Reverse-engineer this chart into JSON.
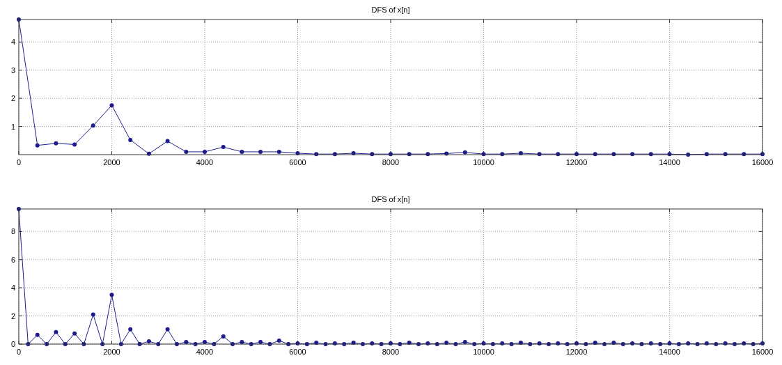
{
  "chart_data": [
    {
      "type": "line",
      "title": "DFS of x[n]",
      "x": [
        0,
        400,
        800,
        1200,
        1600,
        2000,
        2400,
        2800,
        3200,
        3600,
        4000,
        4400,
        4800,
        5200,
        5600,
        6000,
        6400,
        6800,
        7200,
        7600,
        8000,
        8400,
        8800,
        9200,
        9600,
        10000,
        10400,
        10800,
        11200,
        11600,
        12000,
        12400,
        12800,
        13200,
        13600,
        14000,
        14400,
        14800,
        15200,
        15600,
        16000
      ],
      "series": [
        {
          "color": "#1c1c8c",
          "values": [
            4.8,
            0.33,
            0.4,
            0.36,
            1.03,
            1.75,
            0.52,
            0.03,
            0.48,
            0.1,
            0.1,
            0.27,
            0.1,
            0.1,
            0.1,
            0.05,
            0.02,
            0.02,
            0.05,
            0.02,
            0.02,
            0.02,
            0.02,
            0.04,
            0.08,
            0.02,
            0.02,
            0.05,
            0.02,
            0.02,
            0.02,
            0.02,
            0.02,
            0.02,
            0.02,
            0.02,
            0.0,
            0.02,
            0.02,
            0.02,
            0.02
          ]
        }
      ],
      "xlim": [
        0,
        16000
      ],
      "xticks": [
        0,
        2000,
        4000,
        6000,
        8000,
        10000,
        12000,
        14000,
        16000
      ],
      "ylim": [
        0,
        4.8
      ],
      "yticks": [
        1,
        2,
        3,
        4
      ],
      "grid": true,
      "marker": "circle",
      "line_style": "solid"
    },
    {
      "type": "line",
      "title": "DFS of x[n]",
      "x": [
        0,
        200,
        400,
        600,
        800,
        1000,
        1200,
        1400,
        1600,
        1800,
        2000,
        2200,
        2400,
        2600,
        2800,
        3000,
        3200,
        3400,
        3600,
        3800,
        4000,
        4200,
        4400,
        4600,
        4800,
        5000,
        5200,
        5400,
        5600,
        5800,
        6000,
        6200,
        6400,
        6600,
        6800,
        7000,
        7200,
        7400,
        7600,
        7800,
        8000,
        8200,
        8400,
        8600,
        8800,
        9000,
        9200,
        9400,
        9600,
        9800,
        10000,
        10200,
        10400,
        10600,
        10800,
        11000,
        11200,
        11400,
        11600,
        11800,
        12000,
        12200,
        12400,
        12600,
        12800,
        13000,
        13200,
        13400,
        13600,
        13800,
        14000,
        14200,
        14400,
        14600,
        14800,
        15000,
        15200,
        15400,
        15600,
        15800,
        16000
      ],
      "series": [
        {
          "color": "#1c1c8c",
          "values": [
            9.6,
            0,
            0.65,
            0,
            0.85,
            0,
            0.75,
            0,
            2.1,
            0,
            3.5,
            0,
            1.05,
            0,
            0.2,
            0,
            1.05,
            0,
            0.15,
            0,
            0.15,
            0,
            0.55,
            0,
            0.15,
            0,
            0.15,
            0,
            0.25,
            0,
            0.05,
            0,
            0.1,
            0,
            0.05,
            0,
            0.1,
            0,
            0.05,
            0,
            0.05,
            0,
            0.1,
            0,
            0.05,
            0,
            0.1,
            0,
            0.15,
            0,
            0.05,
            0,
            0.05,
            0,
            0.1,
            0,
            0.05,
            0,
            0.05,
            0,
            0.05,
            0,
            0.1,
            0,
            0.1,
            0,
            0.05,
            0,
            0.05,
            0,
            0.05,
            0,
            0.05,
            0,
            0.05,
            0,
            0.05,
            0,
            0.05,
            0,
            0.05
          ]
        }
      ],
      "xlim": [
        0,
        16000
      ],
      "xticks": [
        0,
        2000,
        4000,
        6000,
        8000,
        10000,
        12000,
        14000,
        16000
      ],
      "ylim": [
        0,
        9.6
      ],
      "yticks": [
        0,
        2,
        4,
        6,
        8
      ],
      "grid": true,
      "marker": "circle",
      "line_style": "solid"
    }
  ]
}
